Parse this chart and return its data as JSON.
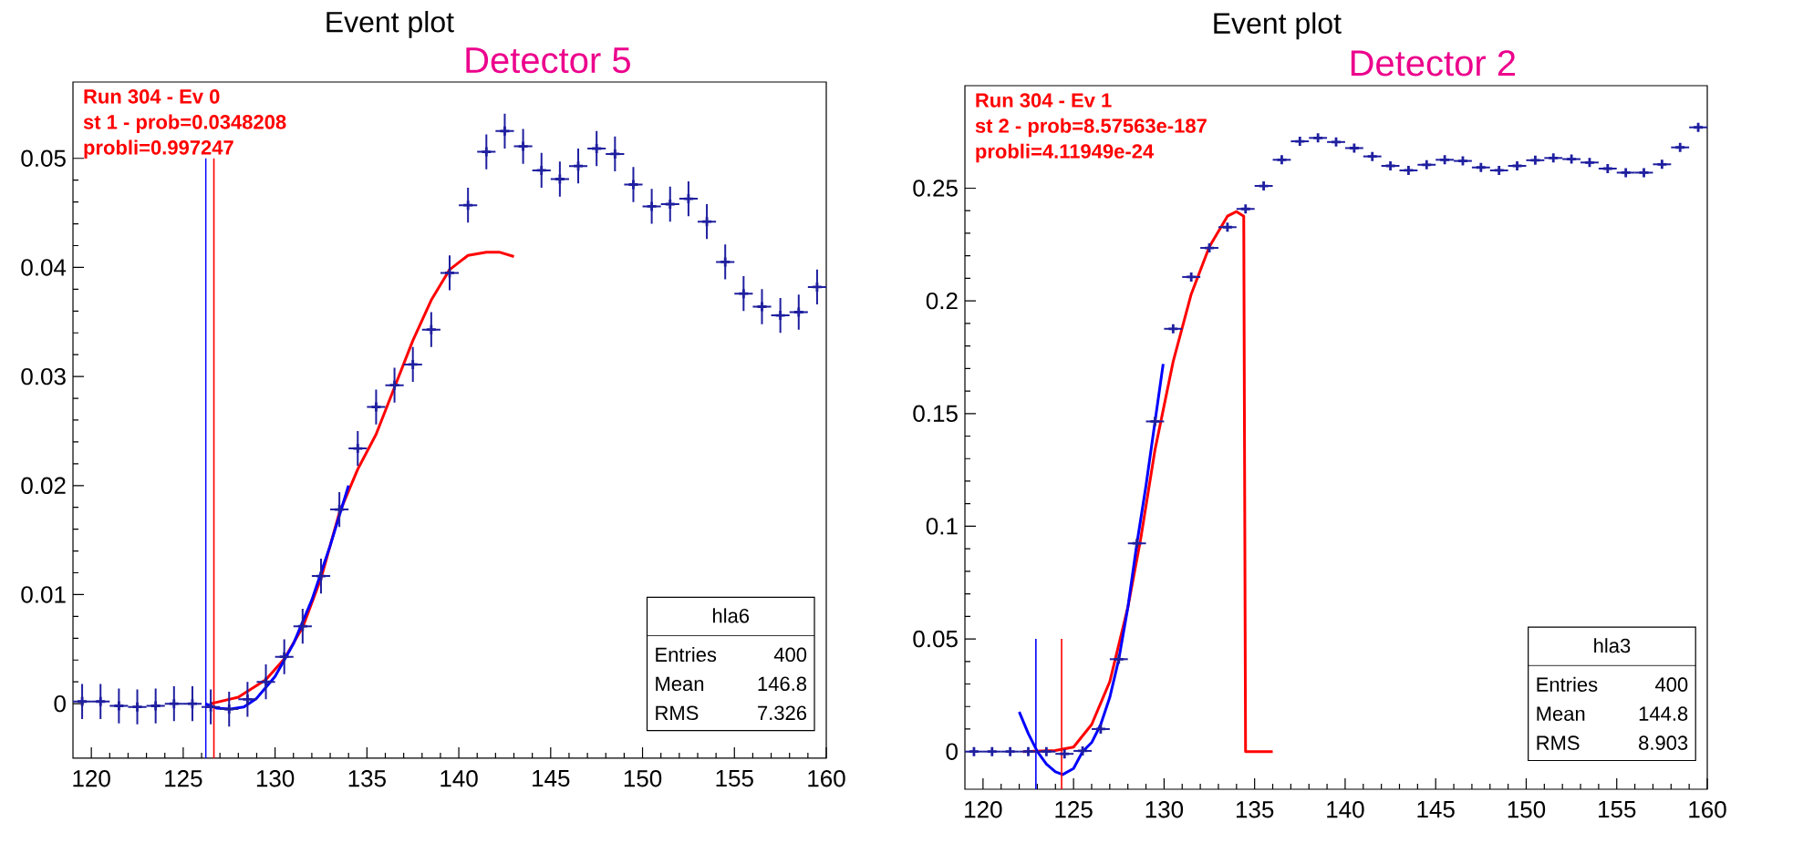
{
  "chart_data": [
    {
      "type": "scatter",
      "title": "Event plot",
      "subtitle": "Detector 5",
      "annotations": [
        "Run 304 - Ev 0",
        "st 1 - prob=0.0348208",
        "probli=0.997247",
        "hla6",
        "Entries",
        "400",
        "Mean",
        "146.8",
        "RMS",
        "7.326"
      ],
      "xlim": [
        119,
        160
      ],
      "ylim": [
        -0.005,
        0.057
      ],
      "xticks": [
        120,
        125,
        130,
        135,
        140,
        145,
        150,
        155,
        160
      ],
      "yticks": [
        0,
        0.01,
        0.02,
        0.03,
        0.04,
        0.05
      ],
      "series": [
        {
          "marker": "cross",
          "color": "#1f1fa0",
          "x": [
            119.5,
            120.5,
            121.5,
            122.5,
            123.5,
            124.5,
            125.5,
            126.5,
            127.5,
            128.5,
            129.5,
            130.5,
            131.5,
            132.5,
            133.5,
            134.5,
            135.5,
            136.5,
            137.5,
            138.5,
            139.5,
            140.5,
            141.5,
            142.5,
            143.5,
            144.5,
            145.5,
            146.5,
            147.5,
            148.5,
            149.5,
            150.5,
            151.5,
            152.5,
            153.5,
            154.5,
            155.5,
            156.5,
            157.5,
            158.5,
            159.5
          ],
          "values": [
            0.0002,
            0.0002,
            -0.0002,
            -0.0003,
            -0.0002,
            0,
            0,
            -0.0003,
            -0.0005,
            0.0004,
            0.002,
            0.0043,
            0.0071,
            0.0117,
            0.0178,
            0.0234,
            0.0272,
            0.0292,
            0.0311,
            0.0343,
            0.0395,
            0.0457,
            0.0506,
            0.0525,
            0.0511,
            0.0489,
            0.0481,
            0.0493,
            0.0509,
            0.0504,
            0.0476,
            0.0456,
            0.0458,
            0.0463,
            0.0442,
            0.0405,
            0.0376,
            0.0364,
            0.0356,
            0.0359,
            0.0382
          ],
          "errors": [
            0.0016,
            0.0016,
            0.0016,
            0.0016,
            0.0016,
            0.0016,
            0.0016,
            0.0016,
            0.0016,
            0.0016,
            0.0016,
            0.0016,
            0.0016,
            0.0016,
            0.0016,
            0.0016,
            0.0016,
            0.0016,
            0.0016,
            0.0016,
            0.0016,
            0.0016,
            0.0016,
            0.0016,
            0.0016,
            0.0016,
            0.0016,
            0.0016,
            0.0016,
            0.0016,
            0.0016,
            0.0016,
            0.0016,
            0.0016,
            0.0016,
            0.0016,
            0.0016,
            0.0016,
            0.0016,
            0.0016,
            0.0016
          ],
          "xerrors": [
            0.5,
            0.5,
            0.5,
            0.5,
            0.5,
            0.5,
            0.5,
            0.5,
            0.5,
            0.5,
            0.5,
            0.5,
            0.5,
            0.5,
            0.5,
            0.5,
            0.5,
            0.5,
            0.5,
            0.5,
            0.5,
            0.5,
            0.5,
            0.5,
            0.5,
            0.5,
            0.5,
            0.5,
            0.5,
            0.5,
            0.5,
            0.5,
            0.5,
            0.5,
            0.5,
            0.5,
            0.5,
            0.5,
            0.5,
            0.5,
            0.5
          ]
        },
        {
          "type": "line",
          "color": "#ff0000",
          "x": [
            126.5,
            128,
            129.5,
            130.5,
            131.5,
            132.5,
            133.5,
            134.5,
            135.5,
            136.5,
            137.5,
            138.5,
            139.5,
            140.5,
            141.5,
            142.2,
            143
          ],
          "values": [
            0,
            0.0006,
            0.0022,
            0.0041,
            0.007,
            0.0115,
            0.0175,
            0.0215,
            0.0247,
            0.029,
            0.0333,
            0.037,
            0.0398,
            0.0411,
            0.0414,
            0.0414,
            0.041
          ]
        },
        {
          "type": "line",
          "color": "#0000ff",
          "x": [
            126.2,
            126.8,
            127.5,
            128.3,
            129,
            130,
            131,
            132,
            133,
            134
          ],
          "values": [
            0,
            -0.0004,
            -0.0005,
            -0.0003,
            0.0005,
            0.0025,
            0.0055,
            0.0095,
            0.0145,
            0.02
          ]
        },
        {
          "type": "line",
          "color": "#0000ff",
          "x": [
            126.23,
            126.23
          ],
          "values": [
            -0.005,
            0.05
          ]
        },
        {
          "type": "line",
          "color": "#ff0000",
          "x": [
            126.67,
            126.67
          ],
          "values": [
            -0.005,
            0.05
          ]
        }
      ]
    },
    {
      "type": "scatter",
      "title": "Event plot",
      "subtitle": "Detector 2",
      "annotations": [
        "Run 304 - Ev 1",
        "st 2 - prob=8.57563e-187",
        "probli=4.11949e-24",
        "hla3",
        "Entries",
        "400",
        "Mean",
        "144.8",
        "RMS",
        "8.903"
      ],
      "xlim": [
        119,
        160
      ],
      "ylim": [
        -0.0167,
        0.2955
      ],
      "xticks": [
        120,
        125,
        130,
        135,
        140,
        145,
        150,
        155,
        160
      ],
      "yticks": [
        0,
        0.05,
        0.1,
        0.15,
        0.2,
        0.25
      ],
      "series": [
        {
          "marker": "cross",
          "color": "#1f1fa0",
          "x": [
            119.5,
            120.5,
            121.5,
            122.5,
            123.5,
            124.5,
            125.5,
            126.5,
            127.5,
            128.5,
            129.5,
            130.5,
            131.5,
            132.5,
            133.5,
            134.5,
            135.5,
            136.5,
            137.5,
            138.5,
            139.5,
            140.5,
            141.5,
            142.5,
            143.5,
            144.5,
            145.5,
            146.5,
            147.5,
            148.5,
            149.5,
            150.5,
            151.5,
            152.5,
            153.5,
            154.5,
            155.5,
            156.5,
            157.5,
            158.5,
            159.5
          ],
          "values": [
            0,
            0,
            0,
            0,
            0,
            -0.001,
            0.0003,
            0.01,
            0.041,
            0.0924,
            0.1465,
            0.1876,
            0.2106,
            0.2235,
            0.2327,
            0.2408,
            0.251,
            0.2626,
            0.2708,
            0.2723,
            0.2705,
            0.2678,
            0.2641,
            0.2599,
            0.2579,
            0.2604,
            0.2626,
            0.2621,
            0.2592,
            0.2579,
            0.2599,
            0.2624,
            0.2634,
            0.2629,
            0.2614,
            0.2587,
            0.2569,
            0.2569,
            0.2606,
            0.2681,
            0.277
          ],
          "xerrors": [
            0.5,
            0.5,
            0.5,
            0.5,
            0.5,
            0.5,
            0.5,
            0.5,
            0.5,
            0.5,
            0.5,
            0.5,
            0.5,
            0.5,
            0.5,
            0.5,
            0.5,
            0.5,
            0.5,
            0.5,
            0.5,
            0.5,
            0.5,
            0.5,
            0.5,
            0.5,
            0.5,
            0.5,
            0.5,
            0.5,
            0.5,
            0.5,
            0.5,
            0.5,
            0.5,
            0.5,
            0.5,
            0.5,
            0.5,
            0.5,
            0.5
          ]
        },
        {
          "type": "line",
          "color": "#ff0000",
          "x": [
            122.2,
            124,
            125,
            126,
            127,
            128,
            128.7,
            129.5,
            130.5,
            131.5,
            132.5,
            133.5,
            134,
            134.4,
            134.5,
            136
          ],
          "values": [
            0,
            0.0005,
            0.002,
            0.012,
            0.031,
            0.064,
            0.094,
            0.134,
            0.173,
            0.203,
            0.224,
            0.2376,
            0.2396,
            0.2376,
            0,
            0
          ]
        },
        {
          "type": "line",
          "color": "#0000ff",
          "x": [
            122,
            122.5,
            123,
            123.5,
            124,
            124.4,
            125,
            125.5,
            126,
            126.5,
            127,
            127.5,
            128,
            128.5,
            129,
            129.5,
            129.95
          ],
          "values": [
            0.0176,
            0.008,
            0,
            -0.0055,
            -0.009,
            -0.0102,
            -0.0075,
            0,
            0.004,
            0.012,
            0.024,
            0.041,
            0.064,
            0.0924,
            0.118,
            0.1465,
            0.172
          ]
        },
        {
          "type": "line",
          "color": "#0000ff",
          "x": [
            122.92,
            122.92
          ],
          "values": [
            -0.0167,
            0.05
          ]
        },
        {
          "type": "line",
          "color": "#ff0000",
          "x": [
            124.34,
            124.34
          ],
          "values": [
            -0.0167,
            0.05
          ]
        }
      ]
    }
  ]
}
